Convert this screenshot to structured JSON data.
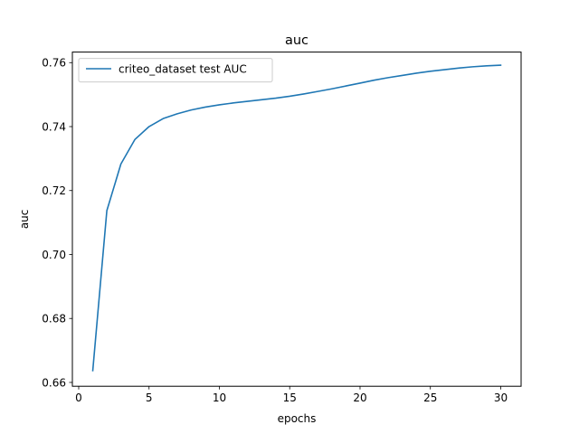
{
  "chart_data": {
    "type": "line",
    "title": "auc",
    "xlabel": "epochs",
    "ylabel": "auc",
    "xlim": [
      -0.45,
      31.45
    ],
    "ylim": [
      0.6588,
      0.7633
    ],
    "xticks": [
      0,
      5,
      10,
      15,
      20,
      25,
      30
    ],
    "yticks": [
      0.66,
      0.68,
      0.7,
      0.72,
      0.74,
      0.76
    ],
    "ytick_labels": [
      "0.66",
      "0.68",
      "0.70",
      "0.72",
      "0.74",
      "0.76"
    ],
    "legend_position": "upper-left",
    "grid": false,
    "series": [
      {
        "name": "criteo_dataset test AUC",
        "color": "#1f77b4",
        "x": [
          1,
          2,
          3,
          4,
          5,
          6,
          7,
          8,
          9,
          10,
          11,
          12,
          13,
          14,
          15,
          16,
          17,
          18,
          19,
          20,
          21,
          22,
          23,
          24,
          25,
          26,
          27,
          28,
          29,
          30
        ],
        "y": [
          0.6637,
          0.7137,
          0.7283,
          0.736,
          0.74,
          0.7425,
          0.744,
          0.7452,
          0.7461,
          0.7468,
          0.7474,
          0.7479,
          0.7484,
          0.7489,
          0.7495,
          0.7502,
          0.751,
          0.7518,
          0.7527,
          0.7536,
          0.7545,
          0.7553,
          0.756,
          0.7567,
          0.7573,
          0.7578,
          0.7583,
          0.7587,
          0.759,
          0.7592
        ]
      }
    ]
  }
}
